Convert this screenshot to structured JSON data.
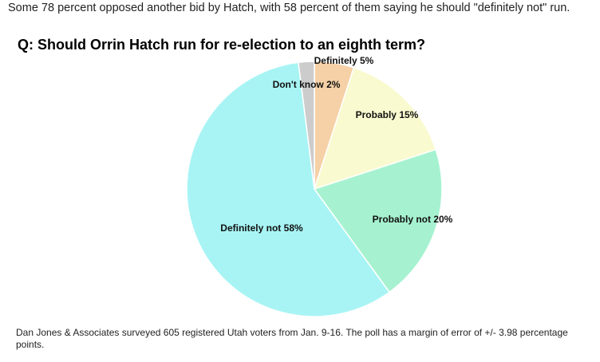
{
  "subtitle": "Some 78 percent opposed another bid by Hatch, with 58 percent of them saying he should \"definitely not\" run.",
  "chart_data": {
    "type": "pie",
    "title": "Q: Should Orrin Hatch run for re-election to an eighth term?",
    "categories": [
      "Definitely",
      "Probably",
      "Probably not",
      "Definitely not",
      "Don't know"
    ],
    "values": [
      5,
      15,
      20,
      58,
      2
    ],
    "value_labels": [
      "5%",
      "15%",
      "20%",
      "58%",
      "2%"
    ],
    "colors": [
      "#f6d0a6",
      "#fafad0",
      "#a6f2d0",
      "#a8f4f4",
      "#cccccc"
    ]
  },
  "footnote": "Dan Jones & Associates surveyed 605 registered Utah voters from Jan. 9-16. The poll has a margin of error of +/- 3.98 percentage points."
}
